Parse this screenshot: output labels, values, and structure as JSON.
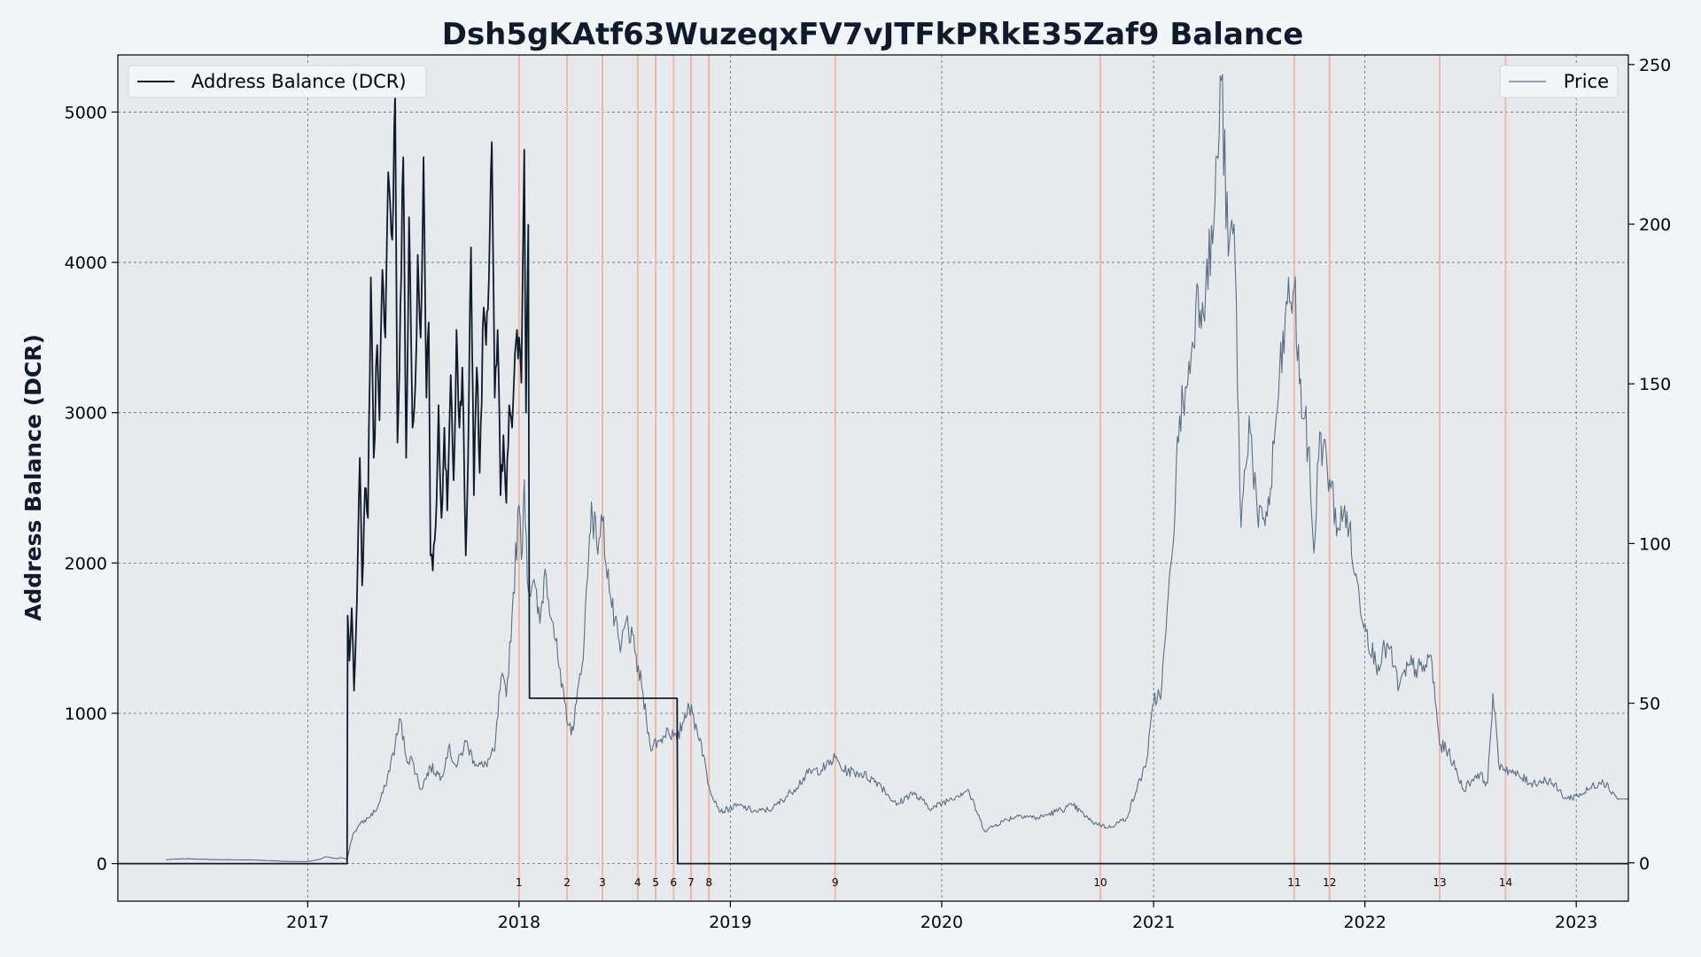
{
  "chart_data": {
    "type": "line",
    "title": "Dsh5gKAtf63WuzeqxFV7vJTFkPRkE35Zaf9 Balance",
    "ylabel": "Address Balance (DCR)",
    "xlim": [
      "2016-02-08",
      "2023-04-01"
    ],
    "ylim": [
      -250,
      5380
    ],
    "y2lim": [
      -12,
      253
    ],
    "x_ticks": [
      {
        "date": "2017-01-01",
        "label": "2017"
      },
      {
        "date": "2018-01-01",
        "label": "2018"
      },
      {
        "date": "2019-01-01",
        "label": "2019"
      },
      {
        "date": "2020-01-01",
        "label": "2020"
      },
      {
        "date": "2021-01-01",
        "label": "2021"
      },
      {
        "date": "2022-01-01",
        "label": "2022"
      },
      {
        "date": "2023-01-01",
        "label": "2023"
      }
    ],
    "y_ticks": [
      0,
      1000,
      2000,
      3000,
      4000,
      5000
    ],
    "y2_ticks": [
      0,
      50,
      100,
      150,
      200,
      250
    ],
    "grid": true,
    "legend_left": {
      "label": "Address Balance (DCR)",
      "placement": "top-left"
    },
    "legend_right": {
      "label": "Price",
      "placement": "top-right"
    },
    "series": [
      {
        "name": "Address Balance (DCR)",
        "axis": "left",
        "color": "#0f1b2d",
        "points": [
          [
            "2016-02-08",
            0
          ],
          [
            "2017-03-10",
            0
          ],
          [
            "2017-03-11",
            1650
          ],
          [
            "2017-03-14",
            1350
          ],
          [
            "2017-03-18",
            1700
          ],
          [
            "2017-03-22",
            1150
          ],
          [
            "2017-03-27",
            1750
          ],
          [
            "2017-04-01",
            2700
          ],
          [
            "2017-04-05",
            1850
          ],
          [
            "2017-04-10",
            2500
          ],
          [
            "2017-04-15",
            2300
          ],
          [
            "2017-04-20",
            3900
          ],
          [
            "2017-04-25",
            2700
          ],
          [
            "2017-05-01",
            3450
          ],
          [
            "2017-05-05",
            2950
          ],
          [
            "2017-05-10",
            3950
          ],
          [
            "2017-05-15",
            3500
          ],
          [
            "2017-05-20",
            4600
          ],
          [
            "2017-05-27",
            4150
          ],
          [
            "2017-06-01",
            5120
          ],
          [
            "2017-06-05",
            2800
          ],
          [
            "2017-06-10",
            3700
          ],
          [
            "2017-06-15",
            4700
          ],
          [
            "2017-06-20",
            2700
          ],
          [
            "2017-06-25",
            4300
          ],
          [
            "2017-07-01",
            2900
          ],
          [
            "2017-07-06",
            3200
          ],
          [
            "2017-07-10",
            4050
          ],
          [
            "2017-07-15",
            3500
          ],
          [
            "2017-07-20",
            4700
          ],
          [
            "2017-07-25",
            3100
          ],
          [
            "2017-07-29",
            3600
          ],
          [
            "2017-08-01",
            2050
          ],
          [
            "2017-08-05",
            1950
          ],
          [
            "2017-08-10",
            2250
          ],
          [
            "2017-08-15",
            3050
          ],
          [
            "2017-08-20",
            2300
          ],
          [
            "2017-08-25",
            2900
          ],
          [
            "2017-08-30",
            2350
          ],
          [
            "2017-09-05",
            3250
          ],
          [
            "2017-09-10",
            2550
          ],
          [
            "2017-09-15",
            3550
          ],
          [
            "2017-09-20",
            2900
          ],
          [
            "2017-09-25",
            3300
          ],
          [
            "2017-10-01",
            2050
          ],
          [
            "2017-10-05",
            2700
          ],
          [
            "2017-10-10",
            4100
          ],
          [
            "2017-10-15",
            2450
          ],
          [
            "2017-10-20",
            3300
          ],
          [
            "2017-10-25",
            2600
          ],
          [
            "2017-11-01",
            3700
          ],
          [
            "2017-11-05",
            3450
          ],
          [
            "2017-11-10",
            3900
          ],
          [
            "2017-11-15",
            4800
          ],
          [
            "2017-11-20",
            3100
          ],
          [
            "2017-11-25",
            3550
          ],
          [
            "2017-11-30",
            2450
          ],
          [
            "2017-12-05",
            2850
          ],
          [
            "2017-12-10",
            2400
          ],
          [
            "2017-12-15",
            3050
          ],
          [
            "2017-12-20",
            2900
          ],
          [
            "2017-12-25",
            3400
          ],
          [
            "2018-01-01",
            3500
          ],
          [
            "2018-01-05",
            3200
          ],
          [
            "2018-01-10",
            4750
          ],
          [
            "2018-01-13",
            3000
          ],
          [
            "2018-01-17",
            4250
          ],
          [
            "2018-01-19",
            1100
          ],
          [
            "2018-10-01",
            1100
          ],
          [
            "2018-10-02",
            0
          ],
          [
            "2023-04-01",
            0
          ]
        ]
      },
      {
        "name": "Price",
        "axis": "right",
        "color": "#5a6e85",
        "points": [
          [
            "2016-05-01",
            1.0
          ],
          [
            "2016-06-01",
            1.3
          ],
          [
            "2016-08-01",
            1.0
          ],
          [
            "2016-10-01",
            0.9
          ],
          [
            "2016-12-01",
            0.4
          ],
          [
            "2017-01-01",
            0.4
          ],
          [
            "2017-01-20",
            1.0
          ],
          [
            "2017-02-01",
            1.9
          ],
          [
            "2017-02-20",
            1.3
          ],
          [
            "2017-03-01",
            1.6
          ],
          [
            "2017-03-10",
            1.2
          ],
          [
            "2017-03-20",
            9.0
          ],
          [
            "2017-04-01",
            12.0
          ],
          [
            "2017-04-15",
            14.0
          ],
          [
            "2017-05-01",
            17.0
          ],
          [
            "2017-05-15",
            24.0
          ],
          [
            "2017-06-01",
            37.0
          ],
          [
            "2017-06-10",
            45.0
          ],
          [
            "2017-06-20",
            33.0
          ],
          [
            "2017-07-01",
            32.0
          ],
          [
            "2017-07-15",
            23.0
          ],
          [
            "2017-08-01",
            30.0
          ],
          [
            "2017-08-20",
            27.0
          ],
          [
            "2017-09-01",
            36.0
          ],
          [
            "2017-09-15",
            30.0
          ],
          [
            "2017-10-01",
            38.0
          ],
          [
            "2017-10-15",
            32.0
          ],
          [
            "2017-11-01",
            30.0
          ],
          [
            "2017-11-20",
            35.0
          ],
          [
            "2017-12-01",
            58.0
          ],
          [
            "2017-12-10",
            52.0
          ],
          [
            "2017-12-20",
            78.0
          ],
          [
            "2018-01-01",
            112.0
          ],
          [
            "2018-01-05",
            95.0
          ],
          [
            "2018-01-10",
            120.0
          ],
          [
            "2018-01-17",
            85.0
          ],
          [
            "2018-01-25",
            88.0
          ],
          [
            "2018-02-06",
            75.0
          ],
          [
            "2018-02-15",
            92.0
          ],
          [
            "2018-03-01",
            75.0
          ],
          [
            "2018-03-15",
            55.0
          ],
          [
            "2018-04-01",
            40.0
          ],
          [
            "2018-04-10",
            50.0
          ],
          [
            "2018-04-20",
            62.0
          ],
          [
            "2018-05-01",
            95.0
          ],
          [
            "2018-05-06",
            113.0
          ],
          [
            "2018-05-15",
            100.0
          ],
          [
            "2018-05-25",
            107.0
          ],
          [
            "2018-06-10",
            80.0
          ],
          [
            "2018-06-25",
            66.0
          ],
          [
            "2018-07-05",
            76.0
          ],
          [
            "2018-07-20",
            66.0
          ],
          [
            "2018-08-01",
            55.0
          ],
          [
            "2018-08-15",
            37.0
          ],
          [
            "2018-09-01",
            38.0
          ],
          [
            "2018-09-15",
            42.0
          ],
          [
            "2018-10-01",
            38.0
          ],
          [
            "2018-10-20",
            50.0
          ],
          [
            "2018-11-10",
            39.0
          ],
          [
            "2018-11-25",
            24.0
          ],
          [
            "2018-12-15",
            16.0
          ],
          [
            "2019-01-15",
            18.0
          ],
          [
            "2019-02-15",
            16.0
          ],
          [
            "2019-03-15",
            17.0
          ],
          [
            "2019-04-15",
            22.0
          ],
          [
            "2019-05-15",
            28.0
          ],
          [
            "2019-06-15",
            30.0
          ],
          [
            "2019-07-01",
            33.0
          ],
          [
            "2019-07-15",
            29.0
          ],
          [
            "2019-08-15",
            28.0
          ],
          [
            "2019-09-15",
            25.0
          ],
          [
            "2019-10-15",
            18.0
          ],
          [
            "2019-11-10",
            22.0
          ],
          [
            "2019-12-15",
            17.0
          ],
          [
            "2020-01-15",
            20.0
          ],
          [
            "2020-02-15",
            23.0
          ],
          [
            "2020-03-15",
            10.0
          ],
          [
            "2020-04-15",
            13.0
          ],
          [
            "2020-05-15",
            15.0
          ],
          [
            "2020-06-15",
            14.0
          ],
          [
            "2020-07-15",
            16.0
          ],
          [
            "2020-08-15",
            18.0
          ],
          [
            "2020-09-15",
            13.0
          ],
          [
            "2020-10-15",
            11.0
          ],
          [
            "2020-11-15",
            14.0
          ],
          [
            "2020-12-01",
            22.0
          ],
          [
            "2020-12-20",
            32.0
          ],
          [
            "2021-01-01",
            50.0
          ],
          [
            "2021-01-15",
            55.0
          ],
          [
            "2021-02-01",
            95.0
          ],
          [
            "2021-02-15",
            140.0
          ],
          [
            "2021-03-01",
            150.0
          ],
          [
            "2021-03-15",
            175.0
          ],
          [
            "2021-04-01",
            180.0
          ],
          [
            "2021-04-15",
            200.0
          ],
          [
            "2021-04-28",
            245.0
          ],
          [
            "2021-05-10",
            190.0
          ],
          [
            "2021-05-20",
            200.0
          ],
          [
            "2021-06-01",
            105.0
          ],
          [
            "2021-06-15",
            140.0
          ],
          [
            "2021-07-01",
            105.0
          ],
          [
            "2021-07-20",
            112.0
          ],
          [
            "2021-08-01",
            140.0
          ],
          [
            "2021-08-20",
            175.0
          ],
          [
            "2021-09-01",
            180.0
          ],
          [
            "2021-09-10",
            150.0
          ],
          [
            "2021-09-25",
            130.0
          ],
          [
            "2021-10-05",
            97.0
          ],
          [
            "2021-10-15",
            135.0
          ],
          [
            "2021-11-01",
            120.0
          ],
          [
            "2021-11-15",
            105.0
          ],
          [
            "2021-12-01",
            110.0
          ],
          [
            "2021-12-15",
            90.0
          ],
          [
            "2022-01-01",
            75.0
          ],
          [
            "2022-01-20",
            62.0
          ],
          [
            "2022-02-10",
            68.0
          ],
          [
            "2022-03-01",
            55.0
          ],
          [
            "2022-03-20",
            62.0
          ],
          [
            "2022-04-10",
            60.0
          ],
          [
            "2022-04-25",
            65.0
          ],
          [
            "2022-05-10",
            37.0
          ],
          [
            "2022-05-25",
            35.0
          ],
          [
            "2022-06-20",
            23.0
          ],
          [
            "2022-07-15",
            28.0
          ],
          [
            "2022-08-01",
            25.0
          ],
          [
            "2022-08-10",
            53.0
          ],
          [
            "2022-08-20",
            31.0
          ],
          [
            "2022-09-15",
            28.0
          ],
          [
            "2022-10-15",
            25.0
          ],
          [
            "2022-11-15",
            26.0
          ],
          [
            "2022-12-15",
            20.0
          ],
          [
            "2023-01-15",
            22.0
          ],
          [
            "2023-02-15",
            26.0
          ],
          [
            "2023-03-15",
            20.0
          ],
          [
            "2023-04-01",
            20.0
          ]
        ]
      }
    ],
    "events": [
      {
        "label": "1",
        "date": "2018-01-01"
      },
      {
        "label": "2",
        "date": "2018-03-25"
      },
      {
        "label": "3",
        "date": "2018-05-25"
      },
      {
        "label": "4",
        "date": "2018-07-25"
      },
      {
        "label": "5",
        "date": "2018-08-25"
      },
      {
        "label": "6",
        "date": "2018-09-25"
      },
      {
        "label": "7",
        "date": "2018-10-25"
      },
      {
        "label": "8",
        "date": "2018-11-25"
      },
      {
        "label": "9",
        "date": "2019-07-01"
      },
      {
        "label": "10",
        "date": "2020-10-01"
      },
      {
        "label": "11",
        "date": "2021-09-01"
      },
      {
        "label": "12",
        "date": "2021-11-01"
      },
      {
        "label": "13",
        "date": "2022-05-10"
      },
      {
        "label": "14",
        "date": "2022-09-01"
      }
    ],
    "colors": {
      "plot_background": "#e6eaed",
      "figure_background": "#f2f6f8",
      "event_line": "#f0b8a8",
      "grid": "#5a6a86",
      "balance_line": "#0f1b2d",
      "price_line": "#5a6e85"
    }
  }
}
